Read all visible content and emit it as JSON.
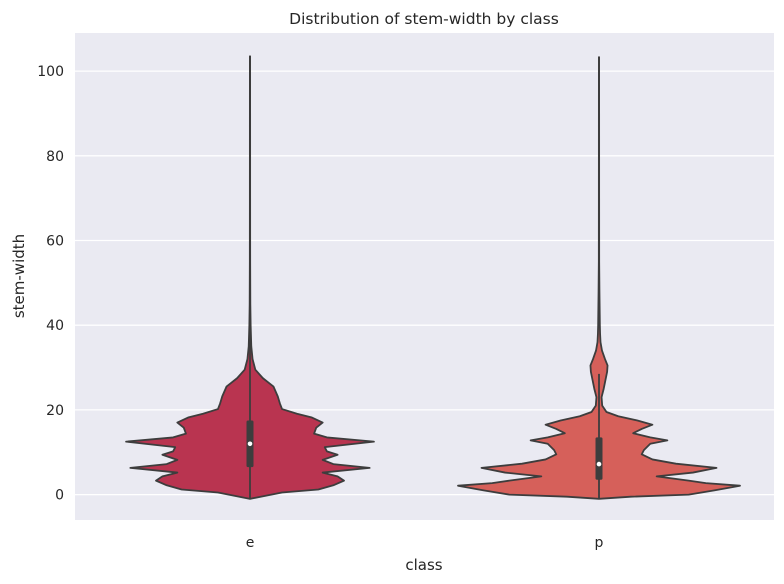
{
  "chart_data": {
    "type": "violin",
    "title": "Distribution of stem-width by class",
    "xlabel": "class",
    "ylabel": "stem-width",
    "categories": [
      "e",
      "p"
    ],
    "ylim": [
      -6,
      109
    ],
    "yticks": [
      0,
      20,
      40,
      60,
      80,
      100
    ],
    "grid": true,
    "colors": {
      "background": "#eaeaf2",
      "grid": "#ffffff",
      "outline": "#3d3d3d",
      "box": "#3d3d3d",
      "median": "#ffffff",
      "e": "#b93450",
      "p": "#d6605a"
    },
    "series": [
      {
        "category": "e",
        "min": -1,
        "max": 103.5,
        "q1": 6.5,
        "median": 12,
        "q3": 17.5,
        "whisker_low": -1,
        "whisker_high": 103.5,
        "density": [
          [
            -1,
            0
          ],
          [
            -0.5,
            0.5
          ],
          [
            0.5,
            1.5
          ],
          [
            1.2,
            3.2
          ],
          [
            2.2,
            3.9
          ],
          [
            3.3,
            4.4
          ],
          [
            4.3,
            4.1
          ],
          [
            5.2,
            3.4
          ],
          [
            6.3,
            5.6
          ],
          [
            7.2,
            3.9
          ],
          [
            8.2,
            3.4
          ],
          [
            9.4,
            4.1
          ],
          [
            10.2,
            3.6
          ],
          [
            11.2,
            3.5
          ],
          [
            12.5,
            5.8
          ],
          [
            13.5,
            3.6
          ],
          [
            14.4,
            3.0
          ],
          [
            15.8,
            3.1
          ],
          [
            17.0,
            3.4
          ],
          [
            18.2,
            2.9
          ],
          [
            19.1,
            2.2
          ],
          [
            20.2,
            1.5
          ],
          [
            21.5,
            1.4
          ],
          [
            23.2,
            1.3
          ],
          [
            25.5,
            1.1
          ],
          [
            27.5,
            0.6
          ],
          [
            29.5,
            0.25
          ],
          [
            32,
            0.12
          ],
          [
            35,
            0.06
          ],
          [
            40,
            0.03
          ],
          [
            45,
            0.015
          ],
          [
            55,
            0.008
          ],
          [
            70,
            0.006
          ],
          [
            90,
            0.005
          ],
          [
            103.5,
            0.004
          ]
        ]
      },
      {
        "category": "p",
        "min": -1,
        "max": 103.3,
        "q1": 3.5,
        "median": 7.2,
        "q3": 13.5,
        "whisker_low": -1,
        "whisker_high": 28.5,
        "density": [
          [
            -1,
            0
          ],
          [
            -0.5,
            1.5
          ],
          [
            0,
            4.2
          ],
          [
            1,
            5.4
          ],
          [
            2.1,
            6.6
          ],
          [
            2.7,
            5.0
          ],
          [
            3.3,
            4.2
          ],
          [
            4.3,
            2.7
          ],
          [
            5.2,
            4.4
          ],
          [
            6.3,
            5.5
          ],
          [
            7.3,
            3.6
          ],
          [
            8.3,
            2.5
          ],
          [
            9.5,
            2.0
          ],
          [
            10.5,
            2.1
          ],
          [
            12,
            2.4
          ],
          [
            12.8,
            3.2
          ],
          [
            13.5,
            2.4
          ],
          [
            14.5,
            1.6
          ],
          [
            15.5,
            2.0
          ],
          [
            16.5,
            2.5
          ],
          [
            17.5,
            1.8
          ],
          [
            18.5,
            0.9
          ],
          [
            19.5,
            0.35
          ],
          [
            21,
            0.15
          ],
          [
            23,
            0.12
          ],
          [
            25,
            0.22
          ],
          [
            27,
            0.3
          ],
          [
            29,
            0.38
          ],
          [
            30.5,
            0.4
          ],
          [
            32,
            0.28
          ],
          [
            34,
            0.14
          ],
          [
            36,
            0.07
          ],
          [
            38,
            0.05
          ],
          [
            40,
            0.04
          ],
          [
            44,
            0.03
          ],
          [
            48,
            0.02
          ],
          [
            55,
            0.008
          ],
          [
            70,
            0.006
          ],
          [
            90,
            0.005
          ],
          [
            103.3,
            0.004
          ]
        ]
      }
    ]
  }
}
